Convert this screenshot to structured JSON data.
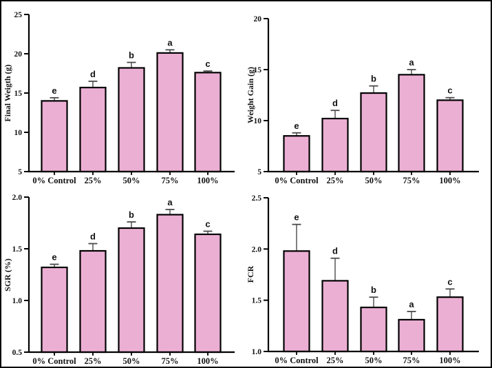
{
  "figure": {
    "title": "",
    "panels_layout": "2x2",
    "colors": {
      "background": "#FFFFFF",
      "frame": "#000000",
      "bar_fill": "#ECAFD4",
      "bar_stroke": "#000000",
      "error_bar": "#4a4a4a",
      "axis": "#000000",
      "text": "#111111"
    }
  },
  "chart_data": [
    {
      "id": "final-weight",
      "type": "bar",
      "title": "",
      "xlabel": "",
      "ylabel": "Final Weigth (g)",
      "categories": [
        "0% Control",
        "25%",
        "50%",
        "75%",
        "100%"
      ],
      "values": [
        14.0,
        15.7,
        18.2,
        20.1,
        17.6
      ],
      "errors": [
        0.4,
        0.8,
        0.7,
        0.4,
        0.2
      ],
      "letters": [
        "e",
        "d",
        "b",
        "a",
        "c"
      ],
      "ylim": [
        5,
        25
      ],
      "yticks": [
        "5",
        "10",
        "15",
        "20",
        "25"
      ],
      "grid": false,
      "legend": null
    },
    {
      "id": "weight-gain",
      "type": "bar",
      "title": "",
      "xlabel": "",
      "ylabel": "Weight Gain (g)",
      "categories": [
        "0% Control",
        "25%",
        "50%",
        "75%",
        "100%"
      ],
      "values": [
        8.5,
        10.2,
        12.7,
        14.5,
        12.0
      ],
      "errors": [
        0.3,
        0.8,
        0.7,
        0.5,
        0.25
      ],
      "letters": [
        "e",
        "d",
        "b",
        "a",
        "c"
      ],
      "ylim": [
        5,
        20
      ],
      "yticks": [
        "5",
        "10",
        "15",
        "20"
      ],
      "grid": false,
      "legend": null
    },
    {
      "id": "sgr",
      "type": "bar",
      "title": "",
      "xlabel": "",
      "ylabel": "SGR (%)",
      "categories": [
        "0% Control",
        "25%",
        "50%",
        "75%",
        "100%"
      ],
      "values": [
        1.32,
        1.48,
        1.7,
        1.83,
        1.64
      ],
      "errors": [
        0.03,
        0.07,
        0.06,
        0.05,
        0.03
      ],
      "letters": [
        "e",
        "d",
        "b",
        "a",
        "c"
      ],
      "ylim": [
        0.5,
        2.0
      ],
      "yticks": [
        "0.5",
        "1.0",
        "1.5",
        "2.0"
      ],
      "grid": false,
      "legend": null
    },
    {
      "id": "fcr",
      "type": "bar",
      "title": "",
      "xlabel": "",
      "ylabel": "FCR",
      "categories": [
        "0% Control",
        "25%",
        "50%",
        "75%",
        "100%"
      ],
      "values": [
        1.98,
        1.69,
        1.43,
        1.31,
        1.53
      ],
      "errors": [
        0.26,
        0.22,
        0.1,
        0.08,
        0.08
      ],
      "letters": [
        "e",
        "d",
        "b",
        "a",
        "c"
      ],
      "ylim": [
        1.0,
        2.5
      ],
      "yticks": [
        "1.0",
        "1.5",
        "2.0",
        "2.5"
      ],
      "grid": false,
      "legend": null
    }
  ]
}
